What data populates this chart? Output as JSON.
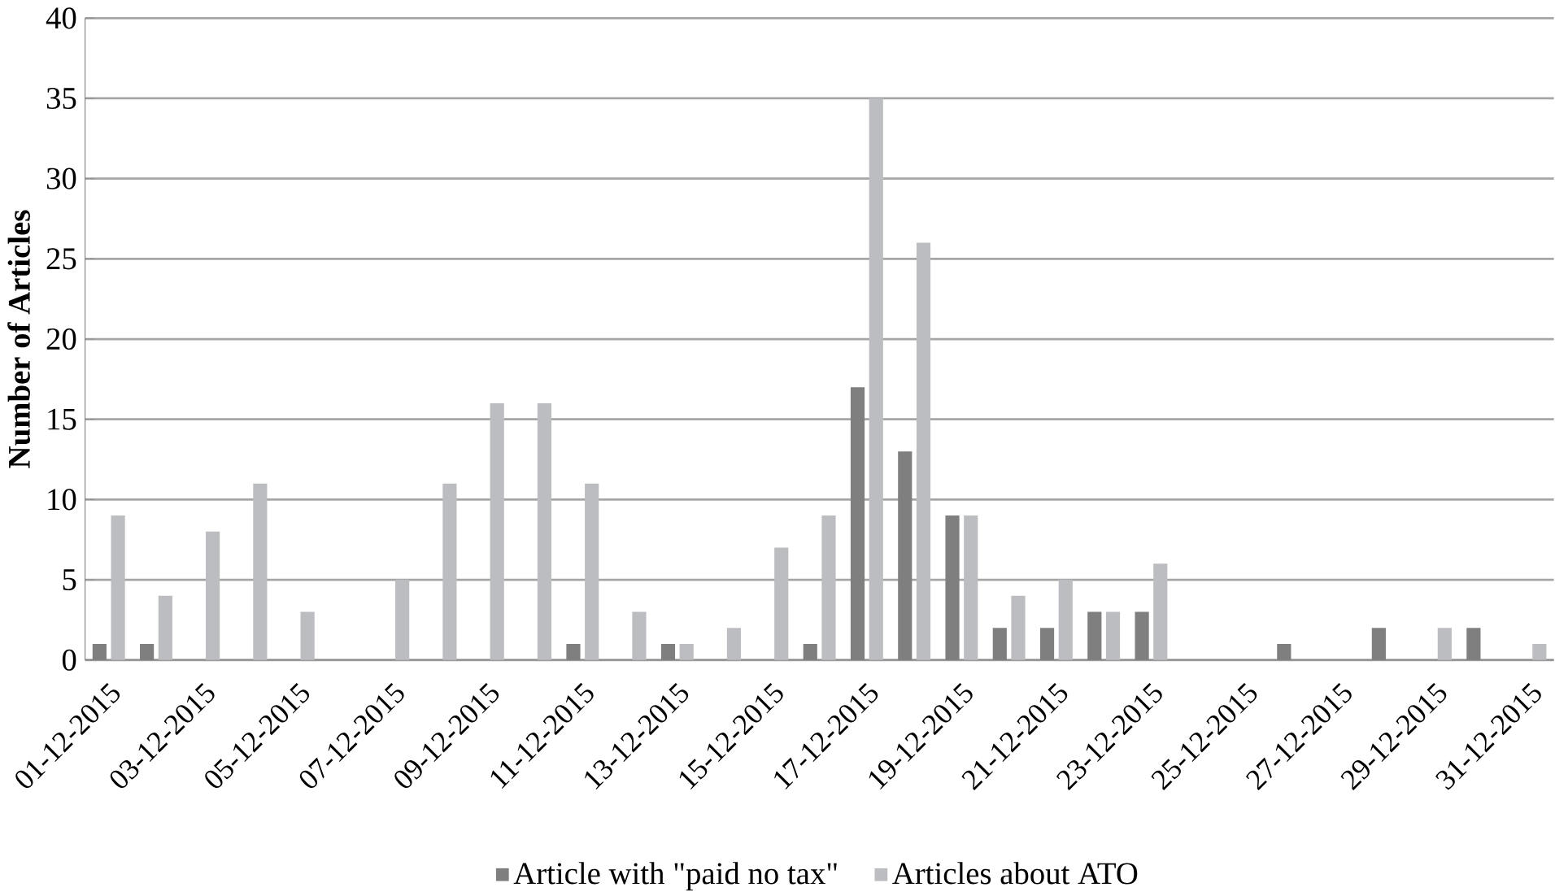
{
  "chart_data": {
    "type": "bar",
    "ylabel": "Number of Articles",
    "categories": [
      "01-12-2015",
      null,
      "03-12-2015",
      null,
      "05-12-2015",
      null,
      "07-12-2015",
      null,
      "09-12-2015",
      null,
      "11-12-2015",
      null,
      "13-12-2015",
      null,
      "15-12-2015",
      null,
      "17-12-2015",
      null,
      "19-12-2015",
      null,
      "21-12-2015",
      null,
      "23-12-2015",
      null,
      "25-12-2015",
      null,
      "27-12-2015",
      null,
      "29-12-2015",
      null,
      "31-12-2015"
    ],
    "series": [
      {
        "name": "Article with \"paid no tax\"",
        "color": "#7f7f80",
        "values": [
          1,
          1,
          0,
          0,
          0,
          0,
          0,
          0,
          0,
          0,
          1,
          0,
          1,
          0,
          0,
          1,
          17,
          13,
          9,
          2,
          2,
          3,
          3,
          0,
          0,
          1,
          0,
          2,
          0,
          2,
          0
        ]
      },
      {
        "name": "Articles about ATO",
        "color": "#bcbdc0",
        "values": [
          9,
          4,
          8,
          11,
          3,
          0,
          5,
          11,
          16,
          16,
          11,
          3,
          1,
          2,
          7,
          9,
          35,
          26,
          9,
          4,
          5,
          3,
          6,
          0,
          0,
          0,
          0,
          0,
          2,
          0,
          1
        ]
      }
    ],
    "ylim": [
      0,
      40
    ],
    "yticks": [
      0,
      5,
      10,
      15,
      20,
      25,
      30,
      35,
      40
    ],
    "grid": "y",
    "legend": "bottom"
  }
}
